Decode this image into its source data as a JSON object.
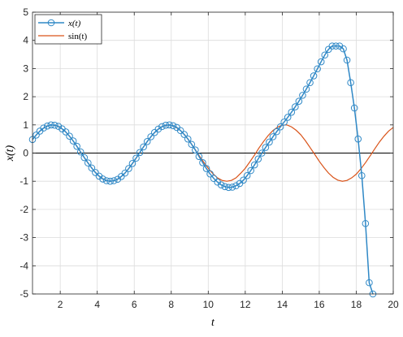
{
  "chart_data": {
    "type": "line",
    "xlabel": "t",
    "ylabel": "x(t)",
    "xlim": [
      0.5,
      20
    ],
    "ylim": [
      -5,
      5
    ],
    "xticks": [
      2,
      4,
      6,
      8,
      10,
      12,
      14,
      16,
      18,
      20
    ],
    "yticks": [
      -5,
      -4,
      -3,
      -2,
      -1,
      0,
      1,
      2,
      3,
      4,
      5
    ],
    "grid": true,
    "legend": {
      "location": "top-left",
      "entries": [
        "x(t)",
        "sin(t)"
      ]
    },
    "colors": {
      "x_series": "#2f88c6",
      "sin_series": "#d95319",
      "grid": "#dcdcdc",
      "axes": "#262626",
      "zero_line": "#000000"
    },
    "series": [
      {
        "name": "x(t)",
        "marker": "circle",
        "x": [
          0.5,
          0.7,
          0.9,
          1.1,
          1.3,
          1.5,
          1.7,
          1.9,
          2.1,
          2.3,
          2.5,
          2.7,
          2.9,
          3.1,
          3.3,
          3.5,
          3.7,
          3.9,
          4.1,
          4.3,
          4.5,
          4.7,
          4.9,
          5.1,
          5.3,
          5.5,
          5.7,
          5.9,
          6.1,
          6.3,
          6.5,
          6.7,
          6.9,
          7.1,
          7.3,
          7.5,
          7.7,
          7.9,
          8.1,
          8.3,
          8.5,
          8.7,
          8.9,
          9.1,
          9.3,
          9.5,
          9.7,
          9.9,
          10.1,
          10.3,
          10.5,
          10.7,
          10.9,
          11.1,
          11.3,
          11.5,
          11.7,
          11.9,
          12.1,
          12.3,
          12.5,
          12.7,
          12.9,
          13.1,
          13.3,
          13.5,
          13.7,
          13.9,
          14.1,
          14.3,
          14.5,
          14.7,
          14.9,
          15.1,
          15.3,
          15.5,
          15.7,
          15.9,
          16.1,
          16.3,
          16.5,
          16.7,
          16.9,
          17.1,
          17.3,
          17.5,
          17.7,
          17.9,
          18.1,
          18.3,
          18.5,
          18.7,
          18.9
        ],
        "y": [
          0.48,
          0.64,
          0.78,
          0.89,
          0.96,
          1.0,
          0.99,
          0.95,
          0.86,
          0.75,
          0.6,
          0.43,
          0.24,
          0.04,
          -0.16,
          -0.35,
          -0.53,
          -0.69,
          -0.82,
          -0.92,
          -0.98,
          -1.0,
          -0.98,
          -0.93,
          -0.83,
          -0.71,
          -0.55,
          -0.37,
          -0.18,
          0.02,
          0.22,
          0.41,
          0.58,
          0.73,
          0.85,
          0.94,
          0.99,
          1.0,
          0.97,
          0.91,
          0.8,
          0.66,
          0.5,
          0.31,
          0.11,
          -0.12,
          -0.34,
          -0.55,
          -0.74,
          -0.9,
          -1.03,
          -1.13,
          -1.19,
          -1.22,
          -1.21,
          -1.16,
          -1.08,
          -0.96,
          -0.8,
          -0.62,
          -0.42,
          -0.21,
          0.0,
          0.2,
          0.39,
          0.58,
          0.76,
          0.93,
          1.1,
          1.27,
          1.45,
          1.64,
          1.84,
          2.05,
          2.27,
          2.5,
          2.74,
          2.99,
          3.24,
          3.48,
          3.68,
          3.8,
          3.8,
          3.8,
          3.7,
          3.3,
          2.5,
          1.6,
          0.5,
          -0.8,
          -2.5,
          -4.6,
          -5.0
        ]
      },
      {
        "name": "sin(t)",
        "x": [
          0.5,
          0.75,
          1.0,
          1.25,
          1.5,
          1.75,
          2.0,
          2.25,
          2.5,
          2.75,
          3.0,
          3.25,
          3.5,
          3.75,
          4.0,
          4.25,
          4.5,
          4.75,
          5.0,
          5.25,
          5.5,
          5.75,
          6.0,
          6.25,
          6.5,
          6.75,
          7.0,
          7.25,
          7.5,
          7.75,
          8.0,
          8.25,
          8.5,
          8.75,
          9.0,
          9.25,
          9.5,
          9.75,
          10.0,
          10.25,
          10.5,
          10.75,
          11.0,
          11.25,
          11.5,
          11.75,
          12.0,
          12.25,
          12.5,
          12.75,
          13.0,
          13.25,
          13.5,
          13.75,
          14.0,
          14.25,
          14.5,
          14.75,
          15.0,
          15.25,
          15.5,
          15.75,
          16.0,
          16.25,
          16.5,
          16.75,
          17.0,
          17.25,
          17.5,
          17.75,
          18.0,
          18.25,
          18.5,
          18.75,
          19.0,
          19.25,
          19.5,
          19.75,
          20.0
        ],
        "y": [
          0.48,
          0.68,
          0.84,
          0.95,
          1.0,
          0.98,
          0.91,
          0.78,
          0.6,
          0.38,
          0.14,
          -0.11,
          -0.35,
          -0.57,
          -0.76,
          -0.89,
          -0.98,
          -1.0,
          -0.96,
          -0.86,
          -0.71,
          -0.51,
          -0.28,
          -0.03,
          0.22,
          0.45,
          0.66,
          0.82,
          0.94,
          0.99,
          0.99,
          0.92,
          0.8,
          0.63,
          0.41,
          0.17,
          -0.08,
          -0.32,
          -0.54,
          -0.73,
          -0.88,
          -0.97,
          -1.0,
          -0.97,
          -0.88,
          -0.72,
          -0.54,
          -0.31,
          -0.07,
          0.19,
          0.42,
          0.63,
          0.8,
          0.92,
          0.99,
          1.0,
          0.93,
          0.81,
          0.65,
          0.44,
          0.2,
          -0.04,
          -0.29,
          -0.51,
          -0.71,
          -0.86,
          -0.96,
          -1.0,
          -0.97,
          -0.88,
          -0.75,
          -0.56,
          -0.34,
          -0.1,
          0.15,
          0.39,
          0.6,
          0.78,
          0.91
        ]
      }
    ]
  }
}
